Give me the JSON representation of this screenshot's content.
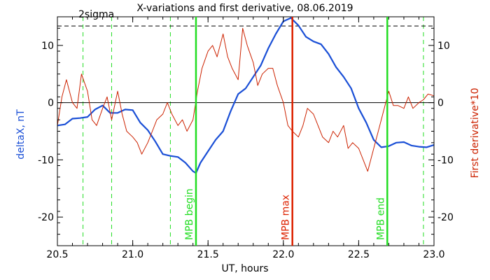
{
  "chart_data": {
    "type": "line",
    "title": "X-variations and first derivative, 08.06.2019",
    "xlabel": "UT, hours",
    "ylabel_left": "deltaX, nT",
    "ylabel_right": "First derivative*10",
    "xlim": [
      20.5,
      23.0
    ],
    "ylim": [
      -25,
      15
    ],
    "x_ticks": [
      20.5,
      21.0,
      21.5,
      22.0,
      22.5,
      23.0
    ],
    "x_tick_labels": [
      "20.5",
      "21.0",
      "21.5",
      "22.0",
      "22.5",
      "23.0"
    ],
    "y_ticks": [
      -20,
      -10,
      0,
      10
    ],
    "y_tick_labels": [
      "-20",
      "-10",
      "0",
      "10"
    ],
    "colors": {
      "deltaX": "#1a4fd6",
      "derivative": "#cc2200",
      "mpb_markers": "#22dd22",
      "mpb_max": "#dd2200",
      "axes": "#000000"
    },
    "sigma": {
      "label": "2sigma",
      "value": 13.4
    },
    "zero_line": 0,
    "dashed_markers_x": [
      20.67,
      20.86,
      21.25,
      22.93
    ],
    "mpb_lines": [
      {
        "x": 21.42,
        "label": "MPB begin",
        "color": "#22dd22"
      },
      {
        "x": 22.06,
        "label": "MPB max",
        "color": "#dd2200"
      },
      {
        "x": 22.69,
        "label": "MPB end",
        "color": "#22dd22"
      }
    ],
    "series": [
      {
        "key": "deltaX",
        "name": "deltaX, nT",
        "x": [
          20.5,
          20.55,
          20.6,
          20.65,
          20.7,
          20.75,
          20.8,
          20.85,
          20.9,
          20.95,
          21.0,
          21.05,
          21.1,
          21.15,
          21.2,
          21.25,
          21.3,
          21.35,
          21.4,
          21.42,
          21.45,
          21.5,
          21.55,
          21.6,
          21.65,
          21.7,
          21.75,
          21.8,
          21.85,
          21.9,
          21.95,
          22.0,
          22.05,
          22.1,
          22.15,
          22.2,
          22.25,
          22.3,
          22.35,
          22.4,
          22.45,
          22.5,
          22.55,
          22.6,
          22.65,
          22.7,
          22.75,
          22.8,
          22.85,
          22.9,
          22.95,
          23.0
        ],
        "y": [
          -4,
          -3.8,
          -2.8,
          -2.7,
          -2.5,
          -1.2,
          -0.5,
          -1.8,
          -1.8,
          -1.2,
          -1.3,
          -3.5,
          -4.8,
          -6.8,
          -9.0,
          -9.3,
          -9.5,
          -10.5,
          -12,
          -12.3,
          -10.5,
          -8.5,
          -6.5,
          -5.0,
          -1.5,
          1.5,
          2.5,
          4.5,
          6.5,
          9.5,
          12,
          14.2,
          14.8,
          13.5,
          11.5,
          10.7,
          10.2,
          8.5,
          6.2,
          4.5,
          2.5,
          -1.0,
          -3.5,
          -6.5,
          -7.8,
          -7.6,
          -7.0,
          -6.9,
          -7.5,
          -7.7,
          -7.8,
          -7.4
        ]
      },
      {
        "key": "derivative",
        "name": "First derivative*10",
        "x": [
          20.5,
          20.53,
          20.56,
          20.6,
          20.63,
          20.66,
          20.7,
          20.73,
          20.76,
          20.8,
          20.83,
          20.86,
          20.9,
          20.93,
          20.96,
          21.0,
          21.03,
          21.06,
          21.1,
          21.13,
          21.16,
          21.2,
          21.23,
          21.26,
          21.3,
          21.33,
          21.36,
          21.4,
          21.43,
          21.46,
          21.5,
          21.53,
          21.56,
          21.6,
          21.63,
          21.66,
          21.7,
          21.73,
          21.76,
          21.8,
          21.83,
          21.86,
          21.9,
          21.93,
          21.96,
          22.0,
          22.03,
          22.06,
          22.1,
          22.13,
          22.16,
          22.2,
          22.23,
          22.26,
          22.3,
          22.33,
          22.36,
          22.4,
          22.43,
          22.46,
          22.5,
          22.53,
          22.56,
          22.6,
          22.63,
          22.66,
          22.7,
          22.73,
          22.76,
          22.8,
          22.83,
          22.86,
          22.9,
          22.93,
          22.96,
          23.0
        ],
        "y": [
          -4,
          1,
          4,
          0,
          -1,
          5,
          2,
          -3,
          -4,
          -1,
          1,
          -3,
          2,
          -2,
          -5,
          -6,
          -7,
          -9,
          -7,
          -5,
          -3,
          -2,
          0,
          -2,
          -4,
          -3,
          -5,
          -3,
          2,
          6,
          9,
          10,
          8,
          12,
          8,
          6,
          4,
          13,
          10,
          7,
          3,
          5,
          6,
          6,
          3,
          0,
          -4,
          -5,
          -6,
          -4,
          -1,
          -2,
          -4,
          -6,
          -7,
          -5,
          -6,
          -4,
          -8,
          -7,
          -8,
          -10,
          -12,
          -8,
          -5,
          -2,
          2,
          -0.5,
          -0.5,
          -1,
          1,
          -1,
          0,
          0.5,
          1.5,
          1.2
        ]
      }
    ]
  }
}
